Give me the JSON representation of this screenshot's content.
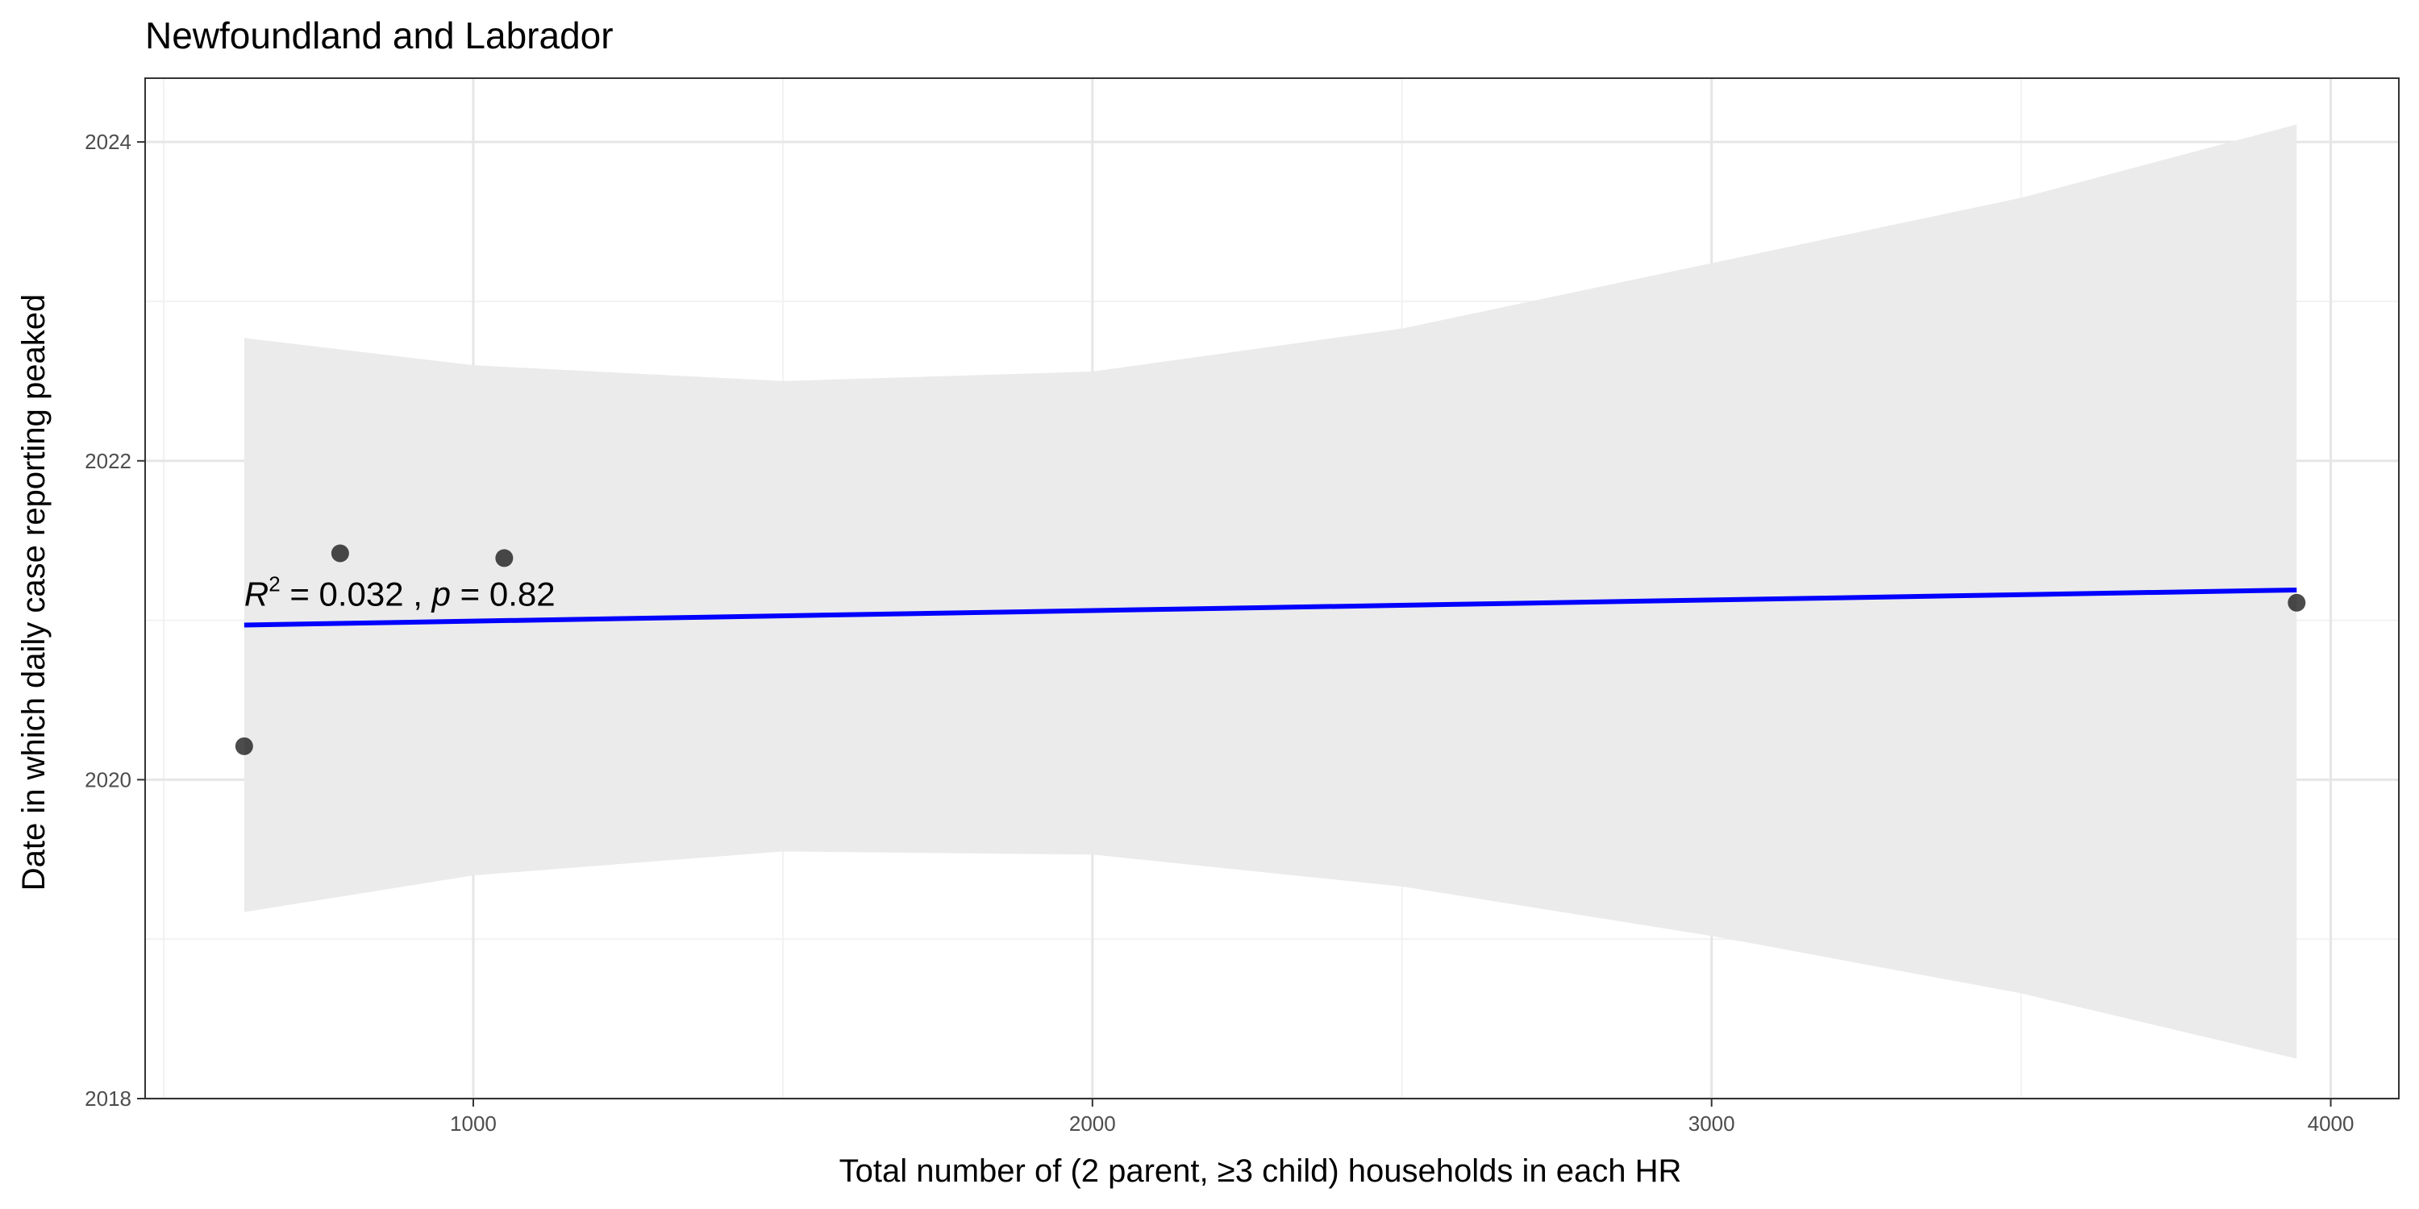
{
  "chart_data": {
    "type": "scatter",
    "title": "Newfoundland and Labrador",
    "xlabel": "Total number of (2 parent, ≥3 child) households in each HR",
    "ylabel": "Date in which daily case reporting peaked",
    "xlim": [
      470,
      4110
    ],
    "ylim": [
      2018.0,
      2024.4
    ],
    "x_ticks": [
      1000,
      2000,
      3000,
      4000
    ],
    "x_tick_labels": [
      "1000",
      "2000",
      "3000",
      "4000"
    ],
    "y_ticks": [
      2018,
      2020,
      2022,
      2024
    ],
    "y_tick_labels": [
      "2018",
      "2020",
      "2022",
      "2024"
    ],
    "grid": true,
    "series": [
      {
        "kind": "points",
        "points": [
          {
            "x": 630,
            "y": 2020.21
          },
          {
            "x": 785,
            "y": 2021.42
          },
          {
            "x": 1050,
            "y": 2021.39
          },
          {
            "x": 3945,
            "y": 2021.11
          }
        ]
      },
      {
        "kind": "regression",
        "color": "#0000ff",
        "x_range": [
          630,
          3945
        ],
        "line": [
          {
            "x": 630,
            "y": 2020.97
          },
          {
            "x": 3945,
            "y": 2021.19
          }
        ],
        "ribbon": [
          {
            "x": 630,
            "lower": 2019.17,
            "upper": 2022.77
          },
          {
            "x": 1000,
            "lower": 2019.4,
            "upper": 2022.6
          },
          {
            "x": 1500,
            "lower": 2019.55,
            "upper": 2022.5
          },
          {
            "x": 2000,
            "lower": 2019.53,
            "upper": 2022.56
          },
          {
            "x": 2500,
            "lower": 2019.33,
            "upper": 2022.83
          },
          {
            "x": 3000,
            "lower": 2019.02,
            "upper": 2023.24
          },
          {
            "x": 3500,
            "lower": 2018.66,
            "upper": 2023.65
          },
          {
            "x": 3945,
            "lower": 2018.25,
            "upper": 2024.11
          }
        ],
        "ribbon_color": "#ebebeb"
      }
    ],
    "annotation": {
      "x": 630,
      "y": 2021.08,
      "r2_symbol": "R",
      "r2_exponent": "2",
      "r2_value": " = 0.032 , ",
      "p_symbol": "p",
      "p_value": " = 0.82"
    }
  }
}
